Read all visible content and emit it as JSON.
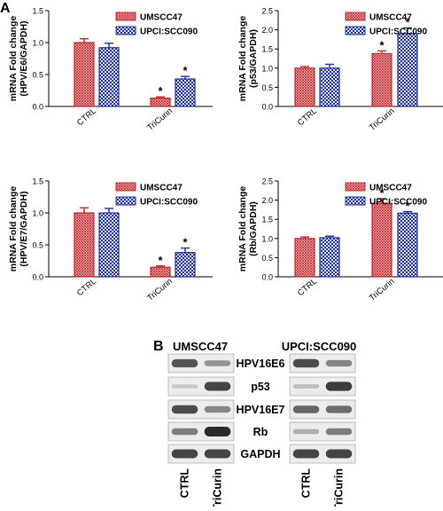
{
  "panel_labels": {
    "a": "A",
    "b": "B"
  },
  "colors": {
    "series1": "#c1272d",
    "series2": "#1f2f8f",
    "axis": "#000000",
    "band": "#2b2b2b"
  },
  "chart_data": [
    {
      "type": "bar",
      "ylabel": [
        "mRNA Fold change",
        "(HPV/E6/GAPDH)"
      ],
      "categories": [
        "CTRL",
        "TriCurin"
      ],
      "yticks": [
        "0.0",
        "0.5",
        "1.0",
        "1.5"
      ],
      "ylim": [
        0,
        1.5
      ],
      "legend_position": "top-right",
      "series": [
        {
          "name": "UMSCC47",
          "values": [
            1.0,
            0.13
          ],
          "errors": [
            0.06,
            0.02
          ],
          "sig": [
            "",
            "*"
          ]
        },
        {
          "name": "UPCI:SCC090",
          "values": [
            0.92,
            0.43
          ],
          "errors": [
            0.07,
            0.04
          ],
          "sig": [
            "",
            "*"
          ]
        }
      ]
    },
    {
      "type": "bar",
      "ylabel": [
        "mRNA Fold change",
        "(p53/GAPDH)"
      ],
      "categories": [
        "CTRL",
        "TriCurin"
      ],
      "yticks": [
        "0.0",
        "0.5",
        "1.0",
        "1.5",
        "2.0",
        "2.5"
      ],
      "ylim": [
        0,
        2.5
      ],
      "legend_position": "top-right",
      "series": [
        {
          "name": "UMSCC47",
          "values": [
            1.0,
            1.38
          ],
          "errors": [
            0.04,
            0.07
          ],
          "sig": [
            "",
            "*"
          ]
        },
        {
          "name": "UPCI:SCC090",
          "values": [
            1.0,
            1.9
          ],
          "errors": [
            0.1,
            0.15
          ],
          "sig": [
            "",
            "*"
          ]
        }
      ]
    },
    {
      "type": "bar",
      "ylabel": [
        "mRNA Fold change",
        "(HPV/E7/GAPDH)"
      ],
      "categories": [
        "CTRL",
        "TriCurin"
      ],
      "yticks": [
        "0.0",
        "0.5",
        "1.0",
        "1.5"
      ],
      "ylim": [
        0,
        1.5
      ],
      "legend_position": "top-right",
      "series": [
        {
          "name": "UMSCC47",
          "values": [
            1.0,
            0.15
          ],
          "errors": [
            0.08,
            0.02
          ],
          "sig": [
            "",
            "*"
          ]
        },
        {
          "name": "UPCI:SCC090",
          "values": [
            1.0,
            0.38
          ],
          "errors": [
            0.07,
            0.07
          ],
          "sig": [
            "",
            "*"
          ]
        }
      ]
    },
    {
      "type": "bar",
      "ylabel": [
        "mRNA Fold change",
        "(Rb/GAPDH)"
      ],
      "categories": [
        "CTRL",
        "TriCurin"
      ],
      "yticks": [
        "0.0",
        "0.5",
        "1.0",
        "1.5",
        "2.0",
        "2.5"
      ],
      "ylim": [
        0,
        2.5
      ],
      "legend_position": "top-right",
      "series": [
        {
          "name": "UMSCC47",
          "values": [
            1.0,
            1.92
          ],
          "errors": [
            0.04,
            0.12
          ],
          "sig": [
            "",
            "*"
          ]
        },
        {
          "name": "UPCI:SCC090",
          "values": [
            1.02,
            1.66
          ],
          "errors": [
            0.04,
            0.04
          ],
          "sig": [
            "",
            "*"
          ]
        }
      ]
    }
  ],
  "western_blot": {
    "cell_lines": [
      "UMSCC47",
      "UPCI:SCC090"
    ],
    "proteins": [
      "HPV16E6",
      "p53",
      "HPV16E7",
      "Rb",
      "GAPDH"
    ],
    "lanes": [
      "CTRL",
      "TriCurin"
    ],
    "intensity": {
      "UMSCC47": [
        [
          0.75,
          0.35
        ],
        [
          0.05,
          0.85
        ],
        [
          0.8,
          0.45
        ],
        [
          0.5,
          1.0
        ],
        [
          0.85,
          0.85
        ]
      ],
      "UPCI:SCC090": [
        [
          0.8,
          0.45
        ],
        [
          0.1,
          0.9
        ],
        [
          0.65,
          0.6
        ],
        [
          0.2,
          0.5
        ],
        [
          0.85,
          0.85
        ]
      ]
    }
  }
}
